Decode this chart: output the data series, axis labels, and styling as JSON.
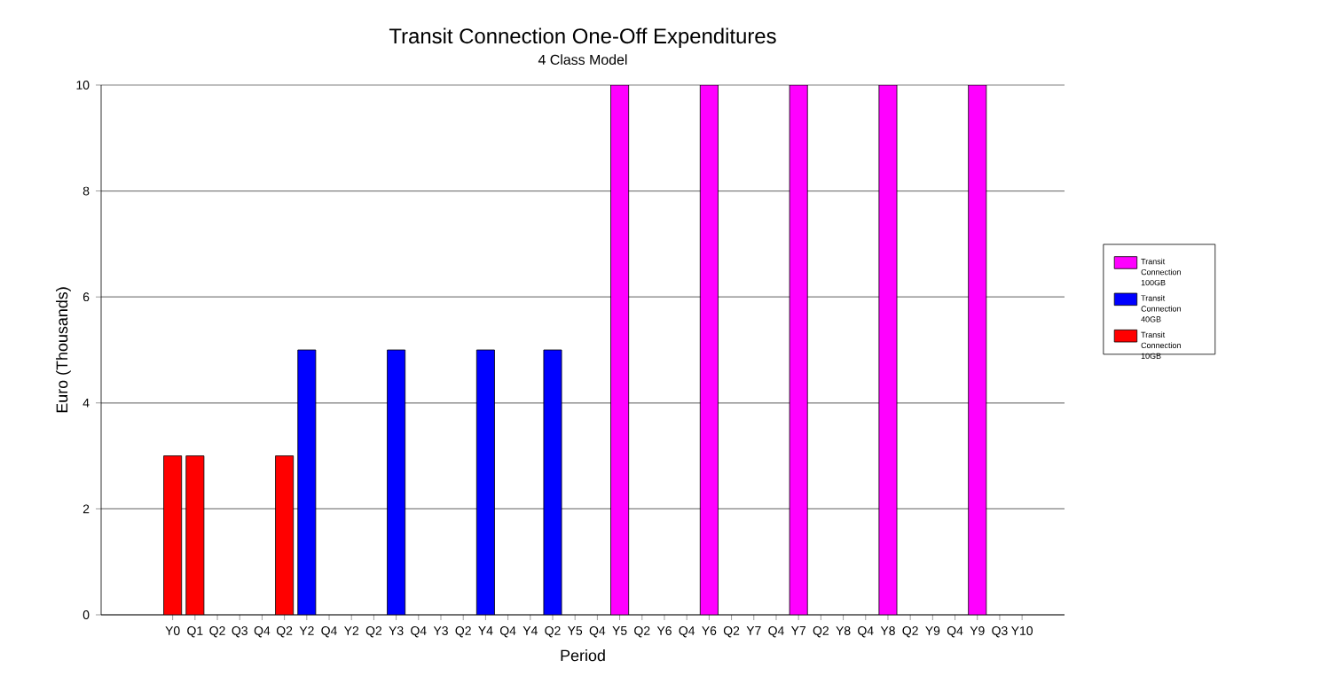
{
  "chart_data": {
    "type": "bar",
    "title": "Transit Connection One-Off Expenditures",
    "subtitle": "4 Class Model",
    "xlabel": "Period",
    "ylabel": "Euro (Thousands)",
    "categories": [
      "Y0",
      "Q1",
      "Q2",
      "Q3",
      "Q4",
      "Q2",
      "Y2",
      "Q4",
      "Y2",
      "Q2",
      "Y3",
      "Q4",
      "Y3",
      "Q2",
      "Y4",
      "Q4",
      "Y4",
      "Q2",
      "Y5",
      "Q4",
      "Y5",
      "Q2",
      "Y6",
      "Q4",
      "Y6",
      "Q2",
      "Y7",
      "Q4",
      "Y7",
      "Q2",
      "Y8",
      "Q4",
      "Y8",
      "Q2",
      "Y9",
      "Q4",
      "Y9",
      "Q3",
      "Y10"
    ],
    "series": [
      {
        "name": "Transit Connection 100GB",
        "color": "#ff00ff",
        "values": [
          null,
          null,
          null,
          null,
          null,
          null,
          null,
          null,
          null,
          null,
          null,
          null,
          null,
          null,
          null,
          null,
          null,
          null,
          null,
          null,
          10,
          null,
          null,
          null,
          10,
          null,
          null,
          null,
          10,
          null,
          null,
          null,
          10,
          null,
          null,
          null,
          10,
          null,
          null
        ]
      },
      {
        "name": "Transit Connection 40GB",
        "color": "#0000ff",
        "values": [
          null,
          null,
          null,
          null,
          null,
          null,
          5,
          null,
          null,
          null,
          5,
          null,
          null,
          null,
          5,
          null,
          null,
          5,
          null,
          null,
          null,
          null,
          null,
          null,
          null,
          null,
          null,
          null,
          null,
          null,
          null,
          null,
          null,
          null,
          null,
          null,
          null,
          null,
          null
        ]
      },
      {
        "name": "Transit Connection 10GB",
        "color": "#ff0000",
        "values": [
          3,
          3,
          null,
          null,
          null,
          3,
          null,
          null,
          null,
          null,
          null,
          null,
          null,
          null,
          null,
          null,
          null,
          null,
          null,
          null,
          null,
          null,
          null,
          null,
          null,
          null,
          null,
          null,
          null,
          null,
          null,
          null,
          null,
          null,
          null,
          null,
          null,
          null,
          null
        ]
      }
    ],
    "ylim": [
      0,
      10
    ],
    "yticks": [
      0,
      2,
      4,
      6,
      8,
      10
    ],
    "grid": "y",
    "legend": "right"
  }
}
